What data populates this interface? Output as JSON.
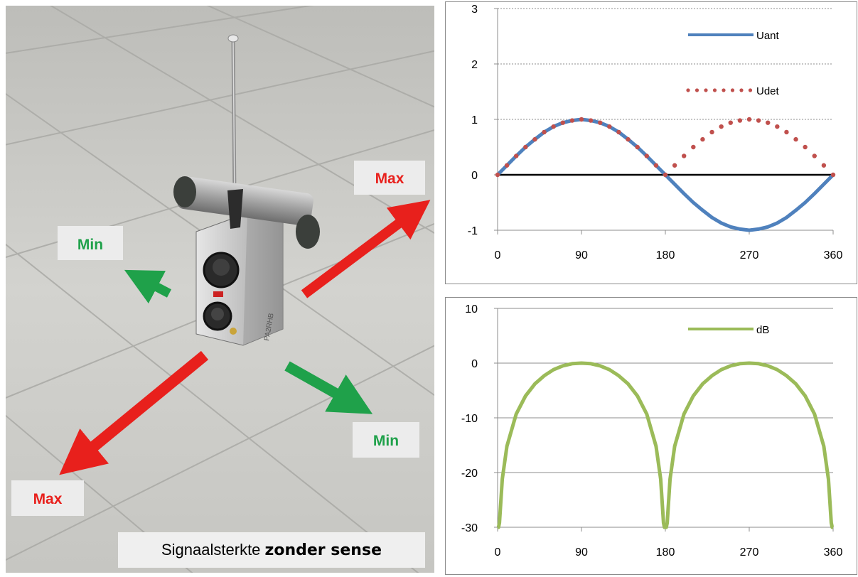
{
  "photo": {
    "labels": {
      "max_top": "Max",
      "max_bottom": "Max",
      "min_left": "Min",
      "min_right": "Min"
    },
    "caption": {
      "normal": "Signaalsterkte ",
      "bold": "zonder sense"
    },
    "device_text": "PA2RHB",
    "colors": {
      "max": "#e8201c",
      "min": "#1fa14a",
      "floor": "#cfcfcc"
    }
  },
  "chart_data": [
    {
      "type": "line",
      "title": "",
      "xlabel": "",
      "ylabel": "",
      "xlim": [
        0,
        360
      ],
      "ylim": [
        -1,
        3
      ],
      "x_ticks": [
        0,
        90,
        180,
        270,
        360
      ],
      "y_ticks": [
        -1,
        0,
        1,
        2,
        3
      ],
      "grid": "dotted horizontal",
      "legend": "top-right",
      "x": [
        0,
        10,
        20,
        30,
        40,
        50,
        60,
        70,
        80,
        90,
        100,
        110,
        120,
        130,
        140,
        150,
        160,
        170,
        180,
        190,
        200,
        210,
        220,
        230,
        240,
        250,
        260,
        270,
        280,
        290,
        300,
        310,
        320,
        330,
        340,
        350,
        360
      ],
      "series": [
        {
          "name": "Uant",
          "style": "solid",
          "color": "#4f81bd",
          "values": [
            0,
            0.17,
            0.34,
            0.5,
            0.64,
            0.77,
            0.87,
            0.94,
            0.98,
            1,
            0.98,
            0.94,
            0.87,
            0.77,
            0.64,
            0.5,
            0.34,
            0.17,
            0,
            -0.17,
            -0.34,
            -0.5,
            -0.64,
            -0.77,
            -0.87,
            -0.94,
            -0.98,
            -1,
            -0.98,
            -0.94,
            -0.87,
            -0.77,
            -0.64,
            -0.5,
            -0.34,
            -0.17,
            0
          ]
        },
        {
          "name": "Udet",
          "style": "dotted",
          "color": "#c0504d",
          "values": [
            0,
            0.17,
            0.34,
            0.5,
            0.64,
            0.77,
            0.87,
            0.94,
            0.98,
            1,
            0.98,
            0.94,
            0.87,
            0.77,
            0.64,
            0.5,
            0.34,
            0.17,
            0,
            0.17,
            0.34,
            0.5,
            0.64,
            0.77,
            0.87,
            0.94,
            0.98,
            1,
            0.98,
            0.94,
            0.87,
            0.77,
            0.64,
            0.5,
            0.34,
            0.17,
            0
          ]
        }
      ]
    },
    {
      "type": "line",
      "title": "",
      "xlabel": "",
      "ylabel": "",
      "xlim": [
        0,
        360
      ],
      "ylim": [
        -30,
        10
      ],
      "x_ticks": [
        0,
        90,
        180,
        270,
        360
      ],
      "y_ticks": [
        -30,
        -20,
        -10,
        0,
        10
      ],
      "grid": "horizontal",
      "legend": "top-right",
      "x": [
        0,
        1,
        2,
        5,
        10,
        20,
        30,
        40,
        50,
        60,
        70,
        80,
        90,
        100,
        110,
        120,
        130,
        140,
        150,
        160,
        170,
        175,
        178,
        179,
        180,
        181,
        182,
        185,
        190,
        200,
        210,
        220,
        230,
        240,
        250,
        260,
        270,
        280,
        290,
        300,
        310,
        320,
        330,
        340,
        350,
        355,
        358,
        359,
        360
      ],
      "series": [
        {
          "name": "dB",
          "style": "solid",
          "color": "#9bbb59",
          "values": [
            -30,
            -30,
            -29.2,
            -21.2,
            -15.2,
            -9.3,
            -6,
            -3.8,
            -2.3,
            -1.2,
            -0.5,
            -0.1,
            0,
            -0.1,
            -0.5,
            -1.2,
            -2.3,
            -3.8,
            -6,
            -9.3,
            -15.2,
            -21.2,
            -29.2,
            -30,
            -30,
            -30,
            -29.2,
            -21.2,
            -15.2,
            -9.3,
            -6,
            -3.8,
            -2.3,
            -1.2,
            -0.5,
            -0.1,
            0,
            -0.1,
            -0.5,
            -1.2,
            -2.3,
            -3.8,
            -6,
            -9.3,
            -15.2,
            -21.2,
            -29.2,
            -30,
            -30
          ]
        }
      ]
    }
  ]
}
